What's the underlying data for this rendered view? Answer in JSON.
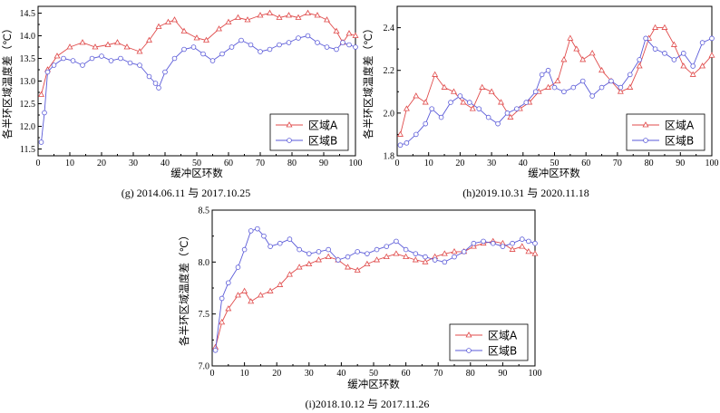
{
  "colors": {
    "a": "#e04b4b",
    "b": "#5a5ad8"
  },
  "chart_data": [
    {
      "id": "g",
      "type": "line",
      "caption": "(g) 2014.06.11 与 2017.10.25",
      "xlabel": "缓冲区环数",
      "ylabel": "各半环区域温度差（℃）",
      "xlim": [
        0,
        100
      ],
      "ylim": [
        11.35,
        14.65
      ],
      "xticks": [
        0,
        10,
        20,
        30,
        40,
        50,
        60,
        70,
        80,
        90,
        100
      ],
      "yticks": [
        11.5,
        12.0,
        12.5,
        13.0,
        13.5,
        14.0,
        14.5
      ],
      "ytick_labels": [
        "11.5",
        "12.0",
        "12.5",
        "13.0",
        "13.5",
        "14.0",
        "14.5"
      ],
      "legend_position": "bottom-right",
      "series": [
        {
          "name": "区域A",
          "key": "a",
          "marker": "triangle",
          "points": [
            [
              1,
              12.7
            ],
            [
              3,
              13.25
            ],
            [
              6,
              13.55
            ],
            [
              10,
              13.75
            ],
            [
              14,
              13.85
            ],
            [
              18,
              13.75
            ],
            [
              22,
              13.8
            ],
            [
              25,
              13.85
            ],
            [
              28,
              13.75
            ],
            [
              32,
              13.65
            ],
            [
              35,
              13.9
            ],
            [
              38,
              14.2
            ],
            [
              41,
              14.3
            ],
            [
              43,
              14.35
            ],
            [
              46,
              14.1
            ],
            [
              50,
              13.95
            ],
            [
              53,
              13.9
            ],
            [
              57,
              14.15
            ],
            [
              60,
              14.3
            ],
            [
              63,
              14.4
            ],
            [
              66,
              14.35
            ],
            [
              70,
              14.45
            ],
            [
              73,
              14.5
            ],
            [
              76,
              14.4
            ],
            [
              79,
              14.45
            ],
            [
              82,
              14.4
            ],
            [
              85,
              14.5
            ],
            [
              88,
              14.45
            ],
            [
              91,
              14.35
            ],
            [
              94,
              14.1
            ],
            [
              96,
              13.85
            ],
            [
              98,
              14.05
            ],
            [
              100,
              14.0
            ]
          ]
        },
        {
          "name": "区域B",
          "key": "b",
          "marker": "circle",
          "points": [
            [
              1,
              11.65
            ],
            [
              2,
              12.3
            ],
            [
              3,
              13.2
            ],
            [
              5,
              13.35
            ],
            [
              8,
              13.5
            ],
            [
              11,
              13.45
            ],
            [
              14,
              13.35
            ],
            [
              17,
              13.5
            ],
            [
              20,
              13.55
            ],
            [
              23,
              13.45
            ],
            [
              26,
              13.5
            ],
            [
              29,
              13.4
            ],
            [
              32,
              13.35
            ],
            [
              35,
              13.1
            ],
            [
              37,
              12.95
            ],
            [
              38,
              12.85
            ],
            [
              40,
              13.2
            ],
            [
              43,
              13.5
            ],
            [
              46,
              13.7
            ],
            [
              49,
              13.75
            ],
            [
              52,
              13.6
            ],
            [
              55,
              13.45
            ],
            [
              58,
              13.6
            ],
            [
              61,
              13.75
            ],
            [
              64,
              13.9
            ],
            [
              67,
              13.8
            ],
            [
              70,
              13.65
            ],
            [
              73,
              13.7
            ],
            [
              76,
              13.8
            ],
            [
              79,
              13.85
            ],
            [
              82,
              13.95
            ],
            [
              85,
              14.0
            ],
            [
              88,
              13.85
            ],
            [
              91,
              13.75
            ],
            [
              94,
              13.7
            ],
            [
              96,
              13.85
            ],
            [
              98,
              13.8
            ],
            [
              100,
              13.75
            ]
          ]
        }
      ]
    },
    {
      "id": "h",
      "type": "line",
      "caption": "(h)2019.10.31 与 2020.11.18",
      "xlabel": "缓冲区环数",
      "ylabel": "各半环区域温度差（℃）",
      "xlim": [
        0,
        100
      ],
      "ylim": [
        1.8,
        2.5
      ],
      "xticks": [
        0,
        10,
        20,
        30,
        40,
        50,
        60,
        70,
        80,
        90,
        100
      ],
      "yticks": [
        1.8,
        2.0,
        2.2,
        2.4
      ],
      "ytick_labels": [
        "1.8",
        "2.0",
        "2.2",
        "2.4"
      ],
      "legend_position": "bottom-right",
      "series": [
        {
          "name": "区域A",
          "key": "a",
          "marker": "triangle",
          "points": [
            [
              1,
              1.9
            ],
            [
              3,
              2.02
            ],
            [
              6,
              2.08
            ],
            [
              9,
              2.05
            ],
            [
              12,
              2.18
            ],
            [
              15,
              2.12
            ],
            [
              18,
              2.1
            ],
            [
              21,
              2.05
            ],
            [
              24,
              2.02
            ],
            [
              27,
              2.12
            ],
            [
              30,
              2.1
            ],
            [
              33,
              2.05
            ],
            [
              36,
              1.98
            ],
            [
              39,
              2.02
            ],
            [
              42,
              2.05
            ],
            [
              45,
              2.1
            ],
            [
              48,
              2.12
            ],
            [
              51,
              2.15
            ],
            [
              53,
              2.25
            ],
            [
              55,
              2.35
            ],
            [
              57,
              2.3
            ],
            [
              59,
              2.25
            ],
            [
              62,
              2.28
            ],
            [
              65,
              2.2
            ],
            [
              68,
              2.15
            ],
            [
              71,
              2.1
            ],
            [
              74,
              2.12
            ],
            [
              77,
              2.22
            ],
            [
              80,
              2.35
            ],
            [
              82,
              2.4
            ],
            [
              85,
              2.4
            ],
            [
              88,
              2.32
            ],
            [
              91,
              2.22
            ],
            [
              94,
              2.18
            ],
            [
              97,
              2.22
            ],
            [
              100,
              2.27
            ]
          ]
        },
        {
          "name": "区域B",
          "key": "b",
          "marker": "circle",
          "points": [
            [
              1,
              1.85
            ],
            [
              3,
              1.86
            ],
            [
              6,
              1.9
            ],
            [
              9,
              1.95
            ],
            [
              11,
              2.02
            ],
            [
              14,
              1.98
            ],
            [
              17,
              2.05
            ],
            [
              20,
              2.08
            ],
            [
              23,
              2.05
            ],
            [
              26,
              2.02
            ],
            [
              29,
              1.98
            ],
            [
              32,
              1.95
            ],
            [
              35,
              2.0
            ],
            [
              38,
              2.02
            ],
            [
              41,
              2.05
            ],
            [
              44,
              2.1
            ],
            [
              46,
              2.18
            ],
            [
              48,
              2.2
            ],
            [
              50,
              2.12
            ],
            [
              53,
              2.1
            ],
            [
              56,
              2.12
            ],
            [
              59,
              2.15
            ],
            [
              62,
              2.08
            ],
            [
              65,
              2.12
            ],
            [
              68,
              2.15
            ],
            [
              71,
              2.12
            ],
            [
              74,
              2.18
            ],
            [
              77,
              2.25
            ],
            [
              79,
              2.35
            ],
            [
              82,
              2.3
            ],
            [
              85,
              2.28
            ],
            [
              88,
              2.25
            ],
            [
              91,
              2.28
            ],
            [
              94,
              2.22
            ],
            [
              97,
              2.33
            ],
            [
              100,
              2.35
            ]
          ]
        }
      ]
    },
    {
      "id": "i",
      "type": "line",
      "caption": "(i)2018.10.12 与 2017.11.26",
      "xlabel": "缓冲区环数",
      "ylabel": "各半环区域温度差（℃）",
      "xlim": [
        0,
        100
      ],
      "ylim": [
        7.0,
        8.5
      ],
      "xticks": [
        0,
        10,
        20,
        30,
        40,
        50,
        60,
        70,
        80,
        90,
        100
      ],
      "yticks": [
        7.0,
        7.5,
        8.0,
        8.5
      ],
      "ytick_labels": [
        "7.0",
        "7.5",
        "8.0",
        "8.5"
      ],
      "legend_position": "bottom-right",
      "series": [
        {
          "name": "区域A",
          "key": "a",
          "marker": "triangle",
          "points": [
            [
              1,
              7.18
            ],
            [
              3,
              7.42
            ],
            [
              5,
              7.55
            ],
            [
              8,
              7.68
            ],
            [
              10,
              7.72
            ],
            [
              12,
              7.62
            ],
            [
              15,
              7.68
            ],
            [
              18,
              7.72
            ],
            [
              21,
              7.78
            ],
            [
              24,
              7.88
            ],
            [
              27,
              7.95
            ],
            [
              30,
              7.98
            ],
            [
              33,
              8.02
            ],
            [
              36,
              8.05
            ],
            [
              39,
              8.02
            ],
            [
              42,
              7.95
            ],
            [
              45,
              7.92
            ],
            [
              48,
              7.98
            ],
            [
              51,
              8.02
            ],
            [
              54,
              8.05
            ],
            [
              57,
              8.08
            ],
            [
              60,
              8.05
            ],
            [
              63,
              8.02
            ],
            [
              66,
              8.0
            ],
            [
              69,
              8.05
            ],
            [
              72,
              8.08
            ],
            [
              75,
              8.1
            ],
            [
              78,
              8.1
            ],
            [
              81,
              8.15
            ],
            [
              84,
              8.18
            ],
            [
              87,
              8.2
            ],
            [
              90,
              8.18
            ],
            [
              93,
              8.12
            ],
            [
              96,
              8.15
            ],
            [
              98,
              8.1
            ],
            [
              100,
              8.08
            ]
          ]
        },
        {
          "name": "区域B",
          "key": "b",
          "marker": "circle",
          "points": [
            [
              1,
              7.15
            ],
            [
              3,
              7.65
            ],
            [
              5,
              7.8
            ],
            [
              8,
              7.95
            ],
            [
              10,
              8.12
            ],
            [
              12,
              8.3
            ],
            [
              14,
              8.32
            ],
            [
              16,
              8.25
            ],
            [
              18,
              8.15
            ],
            [
              21,
              8.18
            ],
            [
              24,
              8.22
            ],
            [
              27,
              8.12
            ],
            [
              30,
              8.08
            ],
            [
              33,
              8.1
            ],
            [
              36,
              8.12
            ],
            [
              39,
              8.02
            ],
            [
              42,
              8.05
            ],
            [
              45,
              8.1
            ],
            [
              48,
              8.08
            ],
            [
              51,
              8.12
            ],
            [
              54,
              8.15
            ],
            [
              57,
              8.2
            ],
            [
              60,
              8.12
            ],
            [
              63,
              8.08
            ],
            [
              66,
              8.05
            ],
            [
              69,
              8.02
            ],
            [
              72,
              8.0
            ],
            [
              75,
              8.05
            ],
            [
              78,
              8.1
            ],
            [
              81,
              8.18
            ],
            [
              84,
              8.2
            ],
            [
              87,
              8.18
            ],
            [
              90,
              8.15
            ],
            [
              93,
              8.18
            ],
            [
              96,
              8.22
            ],
            [
              98,
              8.2
            ],
            [
              100,
              8.18
            ]
          ]
        }
      ]
    }
  ]
}
